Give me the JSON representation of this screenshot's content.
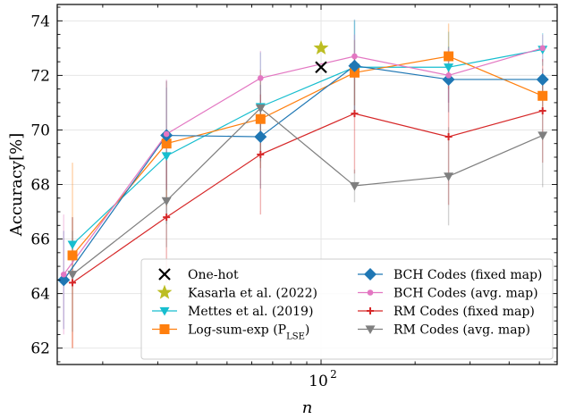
{
  "chart_data": {
    "type": "line",
    "xscale": "log",
    "xlim": [
      14.3,
      570
    ],
    "ylim": [
      61.4,
      74.6
    ],
    "xlabel": "n",
    "ylabel": "Accuracy[%]",
    "xticks": [
      {
        "value": 100,
        "label": "10",
        "sup": "2"
      }
    ],
    "yticks": [
      62,
      64,
      66,
      68,
      70,
      72,
      74
    ],
    "grid": true,
    "legend": {
      "placement": "lower-right",
      "columns": 2
    },
    "series": [
      {
        "name": "One-hot",
        "color": "#000000",
        "marker": "x",
        "line": false,
        "points": [
          {
            "x": 100,
            "y": 72.3
          }
        ]
      },
      {
        "name": "Kasarla et al. (2022)",
        "color": "#bcbd22",
        "marker": "star",
        "line": false,
        "points": [
          {
            "x": 100,
            "y": 73.0
          }
        ]
      },
      {
        "name": "Mettes et al. (2019)",
        "color": "#17becf",
        "marker": "tri-down",
        "line": true,
        "points": [
          {
            "x": 16,
            "y": 65.8,
            "err": 0.5
          },
          {
            "x": 32,
            "y": 69.05,
            "err": 2.5
          },
          {
            "x": 64,
            "y": 70.85,
            "err": 2.0
          },
          {
            "x": 128,
            "y": 72.3,
            "err": 1.7
          },
          {
            "x": 256,
            "y": 72.3,
            "err": 1.3
          },
          {
            "x": 512,
            "y": 72.95,
            "err": 0.6
          }
        ]
      },
      {
        "name": "Log-sum-exp (P_LSE)",
        "label_main": "Log-sum-exp (P",
        "label_sub": "LSE",
        "label_end": ")",
        "color": "#ff7f0e",
        "marker": "square",
        "line": true,
        "points": [
          {
            "x": 16,
            "y": 65.4,
            "err": 3.4
          },
          {
            "x": 32,
            "y": 69.5,
            "err": 2.3
          },
          {
            "x": 64,
            "y": 70.4,
            "err": 1.8
          },
          {
            "x": 128,
            "y": 72.1,
            "err": 1.2
          },
          {
            "x": 256,
            "y": 72.7,
            "err": 1.2
          },
          {
            "x": 512,
            "y": 71.25,
            "err": 0.4
          }
        ]
      },
      {
        "name": "BCH Codes (fixed map)",
        "color": "#1f77b4",
        "marker": "diamond",
        "line": true,
        "points": [
          {
            "x": 15,
            "y": 64.5,
            "err": 1.8
          },
          {
            "x": 32,
            "y": 69.8,
            "err": 2.0
          },
          {
            "x": 64,
            "y": 69.75,
            "err": 1.9
          },
          {
            "x": 128,
            "y": 72.35,
            "err": 1.7
          },
          {
            "x": 256,
            "y": 71.85,
            "err": 1.2
          },
          {
            "x": 512,
            "y": 71.85,
            "err": 0.4
          }
        ]
      },
      {
        "name": "BCH Codes (avg. map)",
        "color": "#e377c2",
        "marker": "dot",
        "line": true,
        "points": [
          {
            "x": 15,
            "y": 64.7,
            "err": 2.2
          },
          {
            "x": 32,
            "y": 69.85,
            "err": 2.0
          },
          {
            "x": 64,
            "y": 71.9,
            "err": 1.0
          },
          {
            "x": 128,
            "y": 72.7,
            "err": 0.8
          },
          {
            "x": 256,
            "y": 72.0,
            "err": 1.0
          },
          {
            "x": 512,
            "y": 73.0,
            "err": 0.5
          }
        ]
      },
      {
        "name": "RM Codes (fixed map)",
        "color": "#d62728",
        "marker": "plus",
        "line": true,
        "points": [
          {
            "x": 16,
            "y": 64.4,
            "err": 2.4
          },
          {
            "x": 32,
            "y": 66.8,
            "err": 2.4
          },
          {
            "x": 64,
            "y": 69.1,
            "err": 2.2
          },
          {
            "x": 128,
            "y": 70.6,
            "err": 2.2
          },
          {
            "x": 256,
            "y": 69.75,
            "err": 2.5
          },
          {
            "x": 512,
            "y": 70.7,
            "err": 1.9
          }
        ]
      },
      {
        "name": "RM Codes (avg. map)",
        "color": "#7f7f7f",
        "marker": "tri-down",
        "line": true,
        "points": [
          {
            "x": 16,
            "y": 64.7,
            "err": 2.1
          },
          {
            "x": 32,
            "y": 67.4,
            "err": 1.7
          },
          {
            "x": 64,
            "y": 70.8,
            "err": 1.0
          },
          {
            "x": 128,
            "y": 67.95,
            "err": 0.6
          },
          {
            "x": 256,
            "y": 68.3,
            "err": 1.8
          },
          {
            "x": 512,
            "y": 69.8,
            "err": 1.9
          }
        ]
      }
    ]
  }
}
